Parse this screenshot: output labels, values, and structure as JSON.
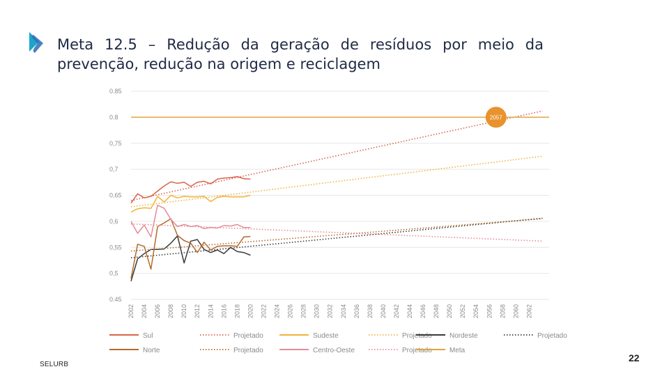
{
  "slide": {
    "title_line1": "Meta 12.5 – Redução da geração de resíduos por meio da",
    "title_line2": "prevenção, redução na origem e reciclagem",
    "brand": "SELURB",
    "page_number": "22",
    "accent_color": "#1fa3c9"
  },
  "chart_data": {
    "type": "line",
    "title": "",
    "xlabel": "",
    "ylabel": "",
    "ylim": [
      0.45,
      0.85
    ],
    "yticks": [
      0.85,
      0.8,
      0.75,
      0.7,
      0.65,
      0.6,
      0.55,
      0.5,
      0.45
    ],
    "ytick_labels": [
      "0.85",
      "0.8",
      "0,75",
      "0,7",
      "0,65",
      "0,6",
      "0,55",
      "0,5",
      "0.45"
    ],
    "xlim": [
      2002,
      2065
    ],
    "xticks": [
      2002,
      2004,
      2006,
      2008,
      2010,
      2012,
      2014,
      2016,
      2018,
      2020,
      2022,
      2024,
      2026,
      2028,
      2030,
      2032,
      2034,
      2036,
      2038,
      2040,
      2042,
      2044,
      2046,
      2048,
      2050,
      2052,
      2054,
      2056,
      2058,
      2060,
      2062
    ],
    "grid": true,
    "legend_position": "bottom",
    "annotation": {
      "label": "2057",
      "x": 2057,
      "y": 0.8,
      "color": "#e8932e"
    },
    "series": [
      {
        "name": "Sul",
        "style": "solid",
        "color": "#d9634a",
        "x": [
          2002,
          2003,
          2004,
          2005,
          2006,
          2007,
          2008,
          2009,
          2010,
          2011,
          2012,
          2013,
          2014,
          2015,
          2016,
          2017,
          2018,
          2019,
          2020
        ],
        "values": [
          0.635,
          0.653,
          0.645,
          0.648,
          0.658,
          0.668,
          0.676,
          0.673,
          0.675,
          0.667,
          0.675,
          0.677,
          0.672,
          0.681,
          0.683,
          0.684,
          0.686,
          0.682,
          0.681
        ]
      },
      {
        "name": "Projetado",
        "style": "dotted",
        "color": "#d9634a",
        "x": [
          2002,
          2064
        ],
        "values": [
          0.64,
          0.812
        ]
      },
      {
        "name": "Sudeste",
        "style": "solid",
        "color": "#f0b23c",
        "x": [
          2002,
          2003,
          2004,
          2005,
          2006,
          2007,
          2008,
          2009,
          2010,
          2011,
          2012,
          2013,
          2014,
          2015,
          2016,
          2017,
          2018,
          2019,
          2020
        ],
        "values": [
          0.618,
          0.624,
          0.626,
          0.625,
          0.648,
          0.637,
          0.65,
          0.645,
          0.648,
          0.647,
          0.647,
          0.648,
          0.638,
          0.646,
          0.648,
          0.647,
          0.647,
          0.647,
          0.65
        ]
      },
      {
        "name": "Projetado",
        "style": "dotted",
        "color": "#f0b23c",
        "x": [
          2002,
          2064
        ],
        "values": [
          0.628,
          0.725
        ]
      },
      {
        "name": "Nordeste",
        "style": "solid",
        "color": "#3a3a3a",
        "x": [
          2002,
          2003,
          2004,
          2005,
          2006,
          2007,
          2008,
          2009,
          2010,
          2011,
          2012,
          2013,
          2014,
          2015,
          2016,
          2017,
          2018,
          2019,
          2020
        ],
        "values": [
          0.485,
          0.528,
          0.538,
          0.546,
          0.546,
          0.547,
          0.558,
          0.572,
          0.52,
          0.562,
          0.565,
          0.546,
          0.54,
          0.545,
          0.538,
          0.55,
          0.542,
          0.54,
          0.535
        ]
      },
      {
        "name": "Projetado",
        "style": "dotted",
        "color": "#3a3a3a",
        "x": [
          2002,
          2064
        ],
        "values": [
          0.53,
          0.606
        ]
      },
      {
        "name": "Norte",
        "style": "solid",
        "color": "#b46a2a",
        "x": [
          2002,
          2003,
          2004,
          2005,
          2006,
          2007,
          2008,
          2009,
          2010,
          2011,
          2012,
          2013,
          2014,
          2015,
          2016,
          2017,
          2018,
          2019,
          2020
        ],
        "values": [
          0.49,
          0.556,
          0.552,
          0.508,
          0.59,
          0.597,
          0.605,
          0.573,
          0.563,
          0.558,
          0.54,
          0.56,
          0.545,
          0.552,
          0.553,
          0.553,
          0.552,
          0.57,
          0.571
        ]
      },
      {
        "name": "Projetado",
        "style": "dotted",
        "color": "#b46a2a",
        "x": [
          2002,
          2064
        ],
        "values": [
          0.543,
          0.605
        ]
      },
      {
        "name": "Centro-Oeste",
        "style": "solid",
        "color": "#e58c96",
        "x": [
          2002,
          2003,
          2004,
          2005,
          2006,
          2007,
          2008,
          2009,
          2010,
          2011,
          2012,
          2013,
          2014,
          2015,
          2016,
          2017,
          2018,
          2019,
          2020
        ],
        "values": [
          0.6,
          0.577,
          0.593,
          0.57,
          0.631,
          0.625,
          0.604,
          0.59,
          0.594,
          0.59,
          0.592,
          0.586,
          0.588,
          0.587,
          0.592,
          0.591,
          0.594,
          0.588,
          0.588
        ]
      },
      {
        "name": "Projetado",
        "style": "dotted",
        "color": "#e58c96",
        "x": [
          2002,
          2064
        ],
        "values": [
          0.595,
          0.562
        ]
      },
      {
        "name": "Meta",
        "style": "solid",
        "color": "#e0a53c",
        "x": [
          2002,
          2065
        ],
        "values": [
          0.8,
          0.8
        ]
      }
    ],
    "legend": [
      {
        "label": "Sul",
        "color": "#d9634a",
        "style": "solid"
      },
      {
        "label": "Projetado",
        "color": "#d9634a",
        "style": "dotted"
      },
      {
        "label": "Sudeste",
        "color": "#f0b23c",
        "style": "solid"
      },
      {
        "label": "Projetado",
        "color": "#f0b23c",
        "style": "dotted"
      },
      {
        "label": "Nordeste",
        "color": "#3a3a3a",
        "style": "solid"
      },
      {
        "label": "Projetado",
        "color": "#3a3a3a",
        "style": "dotted"
      },
      {
        "label": "Norte",
        "color": "#b46a2a",
        "style": "solid"
      },
      {
        "label": "Projetado",
        "color": "#b46a2a",
        "style": "dotted"
      },
      {
        "label": "Centro-Oeste",
        "color": "#e58c96",
        "style": "solid"
      },
      {
        "label": "Projetado",
        "color": "#e58c96",
        "style": "dotted"
      },
      {
        "label": "Meta",
        "color": "#e0a53c",
        "style": "solid"
      }
    ]
  }
}
